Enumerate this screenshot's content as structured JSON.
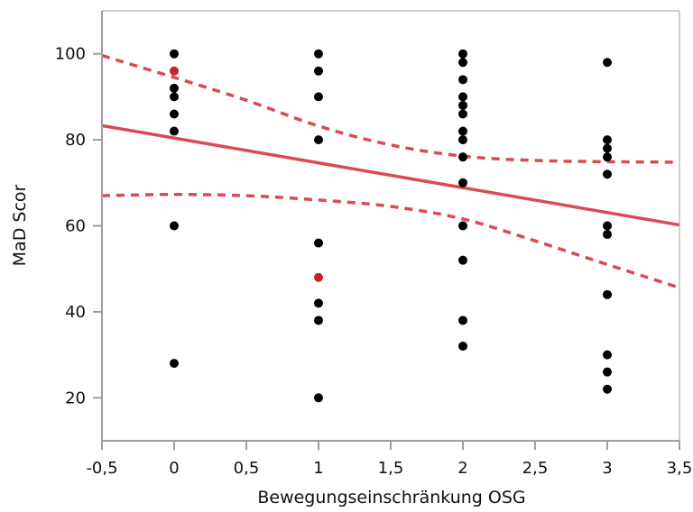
{
  "chart_data": {
    "type": "scatter",
    "title": "",
    "xlabel": "Bewegungseinschränkung OSG",
    "ylabel": "MaD Scor",
    "xlim": [
      -0.5,
      3.5
    ],
    "ylim": [
      10,
      110
    ],
    "x_ticks": [
      -0.5,
      0,
      0.5,
      1,
      1.5,
      2,
      2.5,
      3,
      3.5
    ],
    "x_tick_labels": [
      "-0,5",
      "0",
      "0,5",
      "1",
      "1,5",
      "2",
      "2,5",
      "3",
      "3,5"
    ],
    "y_ticks": [
      20,
      40,
      60,
      80,
      100
    ],
    "y_tick_labels": [
      "20",
      "40",
      "60",
      "80",
      "100"
    ],
    "grid": false,
    "legend": "none",
    "colors": {
      "points": "#000000",
      "highlight": "#c0272d",
      "fit": "#d94a55",
      "axis": "#9e9e9e"
    },
    "points": [
      {
        "x": 0,
        "y": 100
      },
      {
        "x": 0,
        "y": 92
      },
      {
        "x": 0,
        "y": 90
      },
      {
        "x": 0,
        "y": 86
      },
      {
        "x": 0,
        "y": 82
      },
      {
        "x": 0,
        "y": 60
      },
      {
        "x": 0,
        "y": 28
      },
      {
        "x": 1,
        "y": 100
      },
      {
        "x": 1,
        "y": 96
      },
      {
        "x": 1,
        "y": 90
      },
      {
        "x": 1,
        "y": 80
      },
      {
        "x": 1,
        "y": 56
      },
      {
        "x": 1,
        "y": 42
      },
      {
        "x": 1,
        "y": 38
      },
      {
        "x": 1,
        "y": 20
      },
      {
        "x": 2,
        "y": 100
      },
      {
        "x": 2,
        "y": 98
      },
      {
        "x": 2,
        "y": 94
      },
      {
        "x": 2,
        "y": 90
      },
      {
        "x": 2,
        "y": 88
      },
      {
        "x": 2,
        "y": 86
      },
      {
        "x": 2,
        "y": 82
      },
      {
        "x": 2,
        "y": 80
      },
      {
        "x": 2,
        "y": 76
      },
      {
        "x": 2,
        "y": 70
      },
      {
        "x": 2,
        "y": 60
      },
      {
        "x": 2,
        "y": 52
      },
      {
        "x": 2,
        "y": 38
      },
      {
        "x": 2,
        "y": 32
      },
      {
        "x": 3,
        "y": 98
      },
      {
        "x": 3,
        "y": 80
      },
      {
        "x": 3,
        "y": 78
      },
      {
        "x": 3,
        "y": 76
      },
      {
        "x": 3,
        "y": 72
      },
      {
        "x": 3,
        "y": 60
      },
      {
        "x": 3,
        "y": 58
      },
      {
        "x": 3,
        "y": 44
      },
      {
        "x": 3,
        "y": 30
      },
      {
        "x": 3,
        "y": 26
      },
      {
        "x": 3,
        "y": 22
      }
    ],
    "highlighted_points": [
      {
        "x": 0,
        "y": 96
      },
      {
        "x": 1,
        "y": 48
      }
    ],
    "fit_line": {
      "x": [
        -0.5,
        3.5
      ],
      "y": [
        83.3,
        60.2
      ]
    },
    "confidence_upper": {
      "x": [
        -0.5,
        0,
        0.5,
        1,
        1.5,
        2,
        2.5,
        3,
        3.5
      ],
      "y": [
        99.6,
        94.5,
        89.2,
        83.2,
        78.8,
        76.2,
        75.2,
        74.9,
        74.8
      ]
    },
    "confidence_lower": {
      "x": [
        -0.5,
        0,
        0.5,
        1,
        1.5,
        2,
        2.5,
        3,
        3.5
      ],
      "y": [
        67.0,
        67.3,
        67.0,
        66.0,
        64.5,
        61.6,
        56.5,
        51.0,
        45.6
      ]
    }
  }
}
